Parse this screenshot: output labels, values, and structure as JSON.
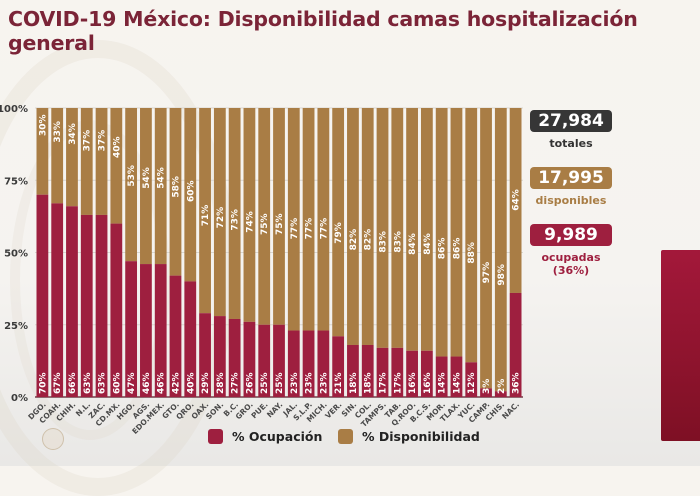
{
  "title": "COVID-19 México: Disponibilidad camas hospitalización general",
  "colors": {
    "ocupacion": "#9e1f3f",
    "disponibilidad": "#a97d45",
    "totales_bg": "#363636",
    "title": "#7b2437"
  },
  "legend": {
    "ocupacion": "% Ocupación",
    "disponibilidad": "% Disponibilidad"
  },
  "stats": {
    "totales": {
      "value": "27,984",
      "label": "totales"
    },
    "disponibles": {
      "value": "17,995",
      "label": "disponibles"
    },
    "ocupadas": {
      "value": "9,989",
      "label": "ocupadas",
      "pct": "(36%)"
    }
  },
  "chart_data": {
    "type": "bar",
    "stacked": true,
    "title": "COVID-19 México: Disponibilidad camas hospitalización general",
    "xlabel": "",
    "ylabel": "",
    "ylim": [
      0,
      100
    ],
    "yticks": [
      "0%",
      "25%",
      "50%",
      "75%",
      "100%"
    ],
    "grid": true,
    "legend_position": "bottom",
    "categories": [
      "DGO.",
      "COAH.",
      "CHIH.",
      "N.L.",
      "ZAC.",
      "CD.MX.",
      "HGO.",
      "AGS.",
      "EDO.MEX.",
      "GTO.",
      "QRO.",
      "OAX.",
      "SON.",
      "B.C.",
      "GRO.",
      "PUE.",
      "NAY.",
      "JAL.",
      "S.L.P.",
      "MICH.",
      "VER.",
      "SIN.",
      "COL.",
      "TAMPS.",
      "TAB.",
      "Q.ROO.",
      "B.C.S.",
      "MOR.",
      "TLAX.",
      "YUC.",
      "CAMP.",
      "CHIS.",
      "NAC."
    ],
    "series": [
      {
        "name": "% Ocupación",
        "values": [
          70,
          67,
          66,
          63,
          63,
          60,
          47,
          46,
          46,
          42,
          40,
          29,
          28,
          27,
          26,
          25,
          25,
          23,
          23,
          23,
          21,
          18,
          18,
          17,
          17,
          16,
          16,
          14,
          14,
          12,
          3,
          2,
          36
        ]
      },
      {
        "name": "% Disponibilidad",
        "values": [
          30,
          33,
          34,
          37,
          37,
          40,
          53,
          54,
          54,
          58,
          60,
          71,
          72,
          73,
          74,
          75,
          75,
          77,
          77,
          77,
          79,
          82,
          82,
          83,
          83,
          84,
          84,
          86,
          86,
          88,
          97,
          98,
          64
        ]
      }
    ]
  }
}
